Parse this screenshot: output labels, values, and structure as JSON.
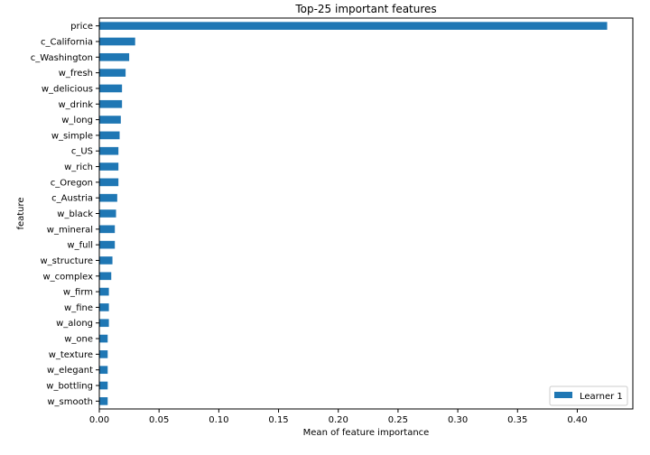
{
  "chart_data": {
    "type": "bar",
    "orientation": "horizontal",
    "title": "Top-25 important features",
    "xlabel": "Mean of feature importance",
    "ylabel": "feature",
    "xlim": [
      0,
      0.4465
    ],
    "xticks": [
      0,
      0.05,
      0.1,
      0.15,
      0.2,
      0.25,
      0.3,
      0.35,
      0.4
    ],
    "xtick_labels": [
      "0.00",
      "0.05",
      "0.10",
      "0.15",
      "0.20",
      "0.25",
      "0.30",
      "0.35",
      "0.40"
    ],
    "categories": [
      "price",
      "c_California",
      "c_Washington",
      "w_fresh",
      "w_delicious",
      "w_drink",
      "w_long",
      "w_simple",
      "c_US",
      "w_rich",
      "c_Oregon",
      "c_Austria",
      "w_black",
      "w_mineral",
      "w_full",
      "w_structure",
      "w_complex",
      "w_firm",
      "w_fine",
      "w_along",
      "w_one",
      "w_texture",
      "w_elegant",
      "w_bottling",
      "w_smooth"
    ],
    "series": [
      {
        "name": "Learner 1",
        "color": "#1f77b4",
        "values": [
          0.425,
          0.03,
          0.025,
          0.022,
          0.019,
          0.019,
          0.018,
          0.017,
          0.016,
          0.016,
          0.016,
          0.015,
          0.014,
          0.013,
          0.013,
          0.011,
          0.01,
          0.008,
          0.008,
          0.008,
          0.007,
          0.007,
          0.007,
          0.007,
          0.007
        ]
      }
    ],
    "grid": false,
    "legend_position": "bottom-right"
  }
}
